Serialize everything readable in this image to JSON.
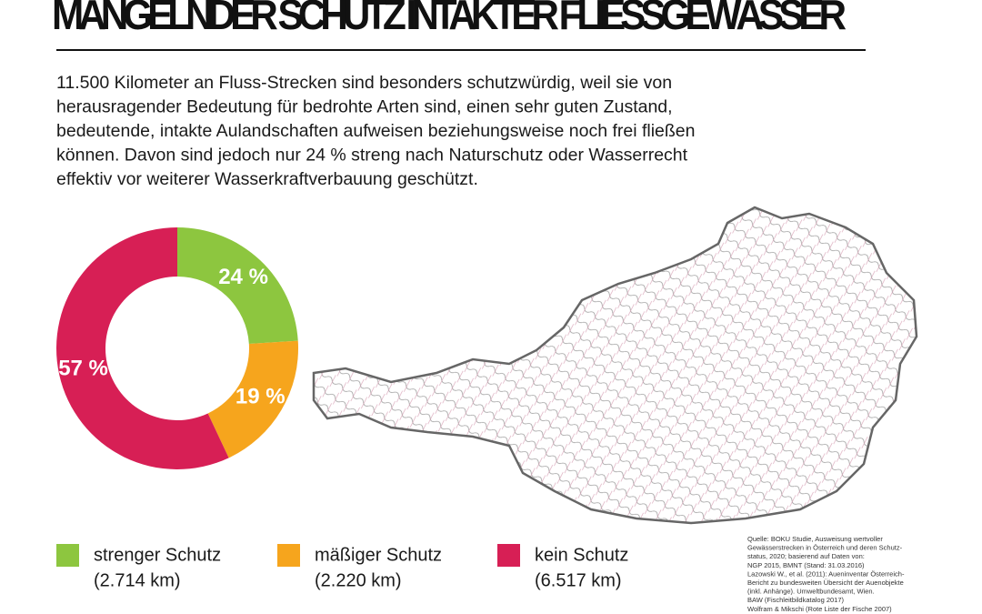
{
  "header": {
    "title": "MANGELNDER SCHUTZ INTAKTER FLIESSGEWÄSSER"
  },
  "intro": [
    "11.500 Kilometer an Fluss-Strecken sind besonders schutzwürdig, weil sie von",
    "herausragender Bedeutung für bedrohte Arten sind, einen sehr guten Zustand,",
    "bedeutende, intakte Aulandschaften aufweisen beziehungsweise noch frei fließen",
    "können. Davon sind jedoch nur 24 % streng nach Naturschutz oder Wasserrecht",
    "effektiv vor weiterer Wasserkraftverbauung geschützt."
  ],
  "chart_data": {
    "type": "pie",
    "donut": true,
    "categories": [
      "strenger Schutz",
      "mäßiger Schutz",
      "kein Schutz"
    ],
    "values": [
      24,
      19,
      57
    ],
    "value_labels": [
      "24 %",
      "19 %",
      "57 %"
    ],
    "colors": [
      "#8dc63f",
      "#f6a51d",
      "#d71f55"
    ],
    "legend_details": [
      "(2.714 km)",
      "(2.220 km)",
      "(6.517 km)"
    ]
  },
  "source": [
    "Quelle: BOKU Studie, Ausweisung wertvoller",
    "Gewässerstrecken in Österreich und deren Schutz-",
    "status, 2020; basierend auf Daten von:",
    "NGP 2015, BMNT (Stand: 31.03.2016)",
    "Lazowski W., et al. (2011): Aueninventar Österreich-",
    "Bericht zu bundesweiten Übersicht der Auenobjekte",
    "(inkl. Anhänge). Umweltbundesamt, Wien.",
    "BAW (Fischleitbildkatalog 2017)",
    "Wolfram & Mikschi (Rote Liste der Fische 2007)"
  ]
}
